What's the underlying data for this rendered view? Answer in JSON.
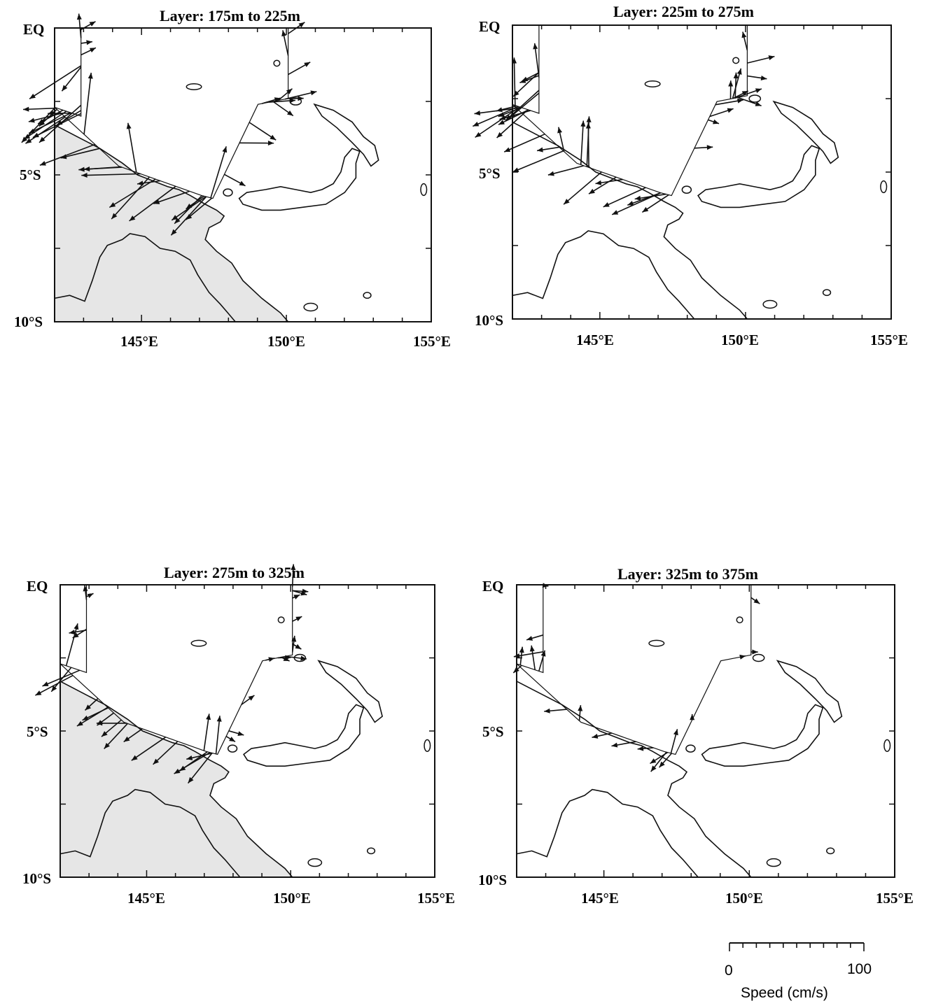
{
  "panels": [
    {
      "title": "Layer:  175m to 225m",
      "shaded": true
    },
    {
      "title": "Layer:  225m to 275m",
      "shaded": false
    },
    {
      "title": "Layer:  275m to 325m",
      "shaded": true
    },
    {
      "title": "Layer:  325m to 375m",
      "shaded": false
    }
  ],
  "lat_labels": [
    "EQ",
    "5°S",
    "10°S"
  ],
  "lon_labels": [
    "145°E",
    "150°E",
    "155°E"
  ],
  "lon_range": [
    142,
    155
  ],
  "lat_range": [
    0,
    -10
  ],
  "scale_bar": {
    "min_label": "0",
    "max_label": "100",
    "caption": "Speed (cm/s)",
    "max_value": 100
  },
  "colors": {
    "ink": "#111111",
    "shade": "#b8b8b8"
  }
}
